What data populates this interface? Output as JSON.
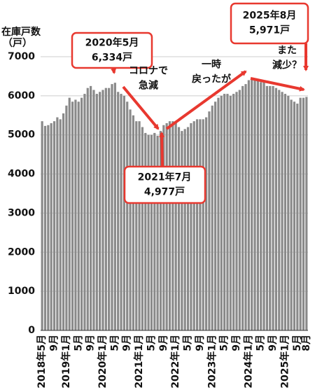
{
  "chart_data": {
    "type": "bar",
    "y_label_lines": [
      "在庫戸数",
      "（戸）"
    ],
    "categories": [
      "2018年5月",
      null,
      null,
      null,
      "9月",
      null,
      null,
      null,
      "2019年1月",
      null,
      null,
      null,
      "5月",
      null,
      null,
      null,
      "9月",
      null,
      null,
      null,
      "2020年1月",
      null,
      null,
      null,
      "5月",
      null,
      null,
      null,
      "9月",
      null,
      null,
      null,
      "2021年1月",
      null,
      null,
      null,
      "5月",
      null,
      null,
      null,
      "9月",
      null,
      null,
      null,
      "2022年1月",
      null,
      null,
      null,
      "5月",
      null,
      null,
      null,
      "9月",
      null,
      null,
      null,
      "2023年1月",
      null,
      null,
      null,
      "5月",
      null,
      null,
      null,
      "9月",
      null,
      null,
      null,
      "2024年1月",
      null,
      null,
      null,
      "5月",
      null,
      null,
      null,
      "9月",
      null,
      null,
      null,
      "2025年1月",
      null,
      null,
      null,
      "5月",
      null,
      null,
      "8月"
    ],
    "values": [
      5350,
      5230,
      5250,
      5300,
      5350,
      5450,
      5400,
      5550,
      5750,
      5950,
      5850,
      5900,
      5850,
      5950,
      6050,
      6200,
      6250,
      6150,
      6050,
      6100,
      6150,
      6200,
      6200,
      6300,
      6334,
      6100,
      6050,
      6000,
      5850,
      5650,
      5500,
      5350,
      5350,
      5200,
      5050,
      5000,
      5000,
      5050,
      4977,
      5100,
      5250,
      5300,
      5350,
      5350,
      5350,
      5200,
      5100,
      5150,
      5200,
      5300,
      5350,
      5400,
      5400,
      5400,
      5450,
      5600,
      5750,
      5850,
      5950,
      6000,
      6050,
      6050,
      6000,
      6050,
      6100,
      6150,
      6250,
      6300,
      6400,
      6450,
      6450,
      6400,
      6350,
      6350,
      6250,
      6250,
      6250,
      6200,
      6150,
      6100,
      6050,
      6000,
      5900,
      5850,
      5800,
      5950,
      5950,
      5971
    ],
    "color": "#8a8a8a",
    "ylim": [
      0,
      7000
    ],
    "yticks": [
      0,
      1000,
      2000,
      3000,
      4000,
      5000,
      6000,
      7000
    ],
    "grid": true,
    "annotation_color": "#e8382f",
    "annotations": [
      {
        "lines": [
          "2020年5月",
          "6,334戸"
        ],
        "boxed": true
      },
      {
        "lines": [
          "コロナで",
          "急減"
        ],
        "boxed": false
      },
      {
        "lines": [
          "2021年7月",
          "4,977戸"
        ],
        "boxed": true
      },
      {
        "lines": [
          "一時",
          "戻ったが"
        ],
        "boxed": false
      },
      {
        "lines": [
          "2025年8月",
          "5,971戸"
        ],
        "boxed": true
      },
      {
        "lines": [
          "また",
          "減少？"
        ],
        "boxed": false
      }
    ]
  }
}
